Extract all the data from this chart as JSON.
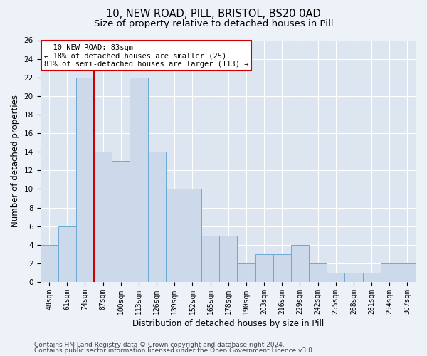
{
  "title1": "10, NEW ROAD, PILL, BRISTOL, BS20 0AD",
  "title2": "Size of property relative to detached houses in Pill",
  "xlabel": "Distribution of detached houses by size in Pill",
  "ylabel": "Number of detached properties",
  "categories": [
    "48sqm",
    "61sqm",
    "74sqm",
    "87sqm",
    "100sqm",
    "113sqm",
    "126sqm",
    "139sqm",
    "152sqm",
    "165sqm",
    "178sqm",
    "190sqm",
    "203sqm",
    "216sqm",
    "229sqm",
    "242sqm",
    "255sqm",
    "268sqm",
    "281sqm",
    "294sqm",
    "307sqm"
  ],
  "values": [
    4,
    6,
    22,
    14,
    13,
    22,
    14,
    10,
    10,
    5,
    5,
    2,
    3,
    3,
    4,
    2,
    1,
    1,
    1,
    2,
    2
  ],
  "bar_color": "#ccd9ea",
  "bar_edge_color": "#6aaad4",
  "vline_x": 2.5,
  "vline_color": "#cc0000",
  "annotation_text": "  10 NEW ROAD: 83sqm\n← 18% of detached houses are smaller (25)\n81% of semi-detached houses are larger (113) →",
  "annotation_box_color": "white",
  "annotation_box_edge": "#cc0000",
  "ylim": [
    0,
    26
  ],
  "yticks": [
    0,
    2,
    4,
    6,
    8,
    10,
    12,
    14,
    16,
    18,
    20,
    22,
    24,
    26
  ],
  "footer1": "Contains HM Land Registry data © Crown copyright and database right 2024.",
  "footer2": "Contains public sector information licensed under the Open Government Licence v3.0.",
  "bg_color": "#edf2f9",
  "plot_bg_color": "#dde6f0",
  "grid_color": "#ffffff",
  "title1_fontsize": 10.5,
  "title2_fontsize": 9.5,
  "tick_fontsize": 7,
  "ylabel_fontsize": 8.5,
  "xlabel_fontsize": 8.5,
  "footer_fontsize": 6.5,
  "ann_fontsize": 7.5
}
